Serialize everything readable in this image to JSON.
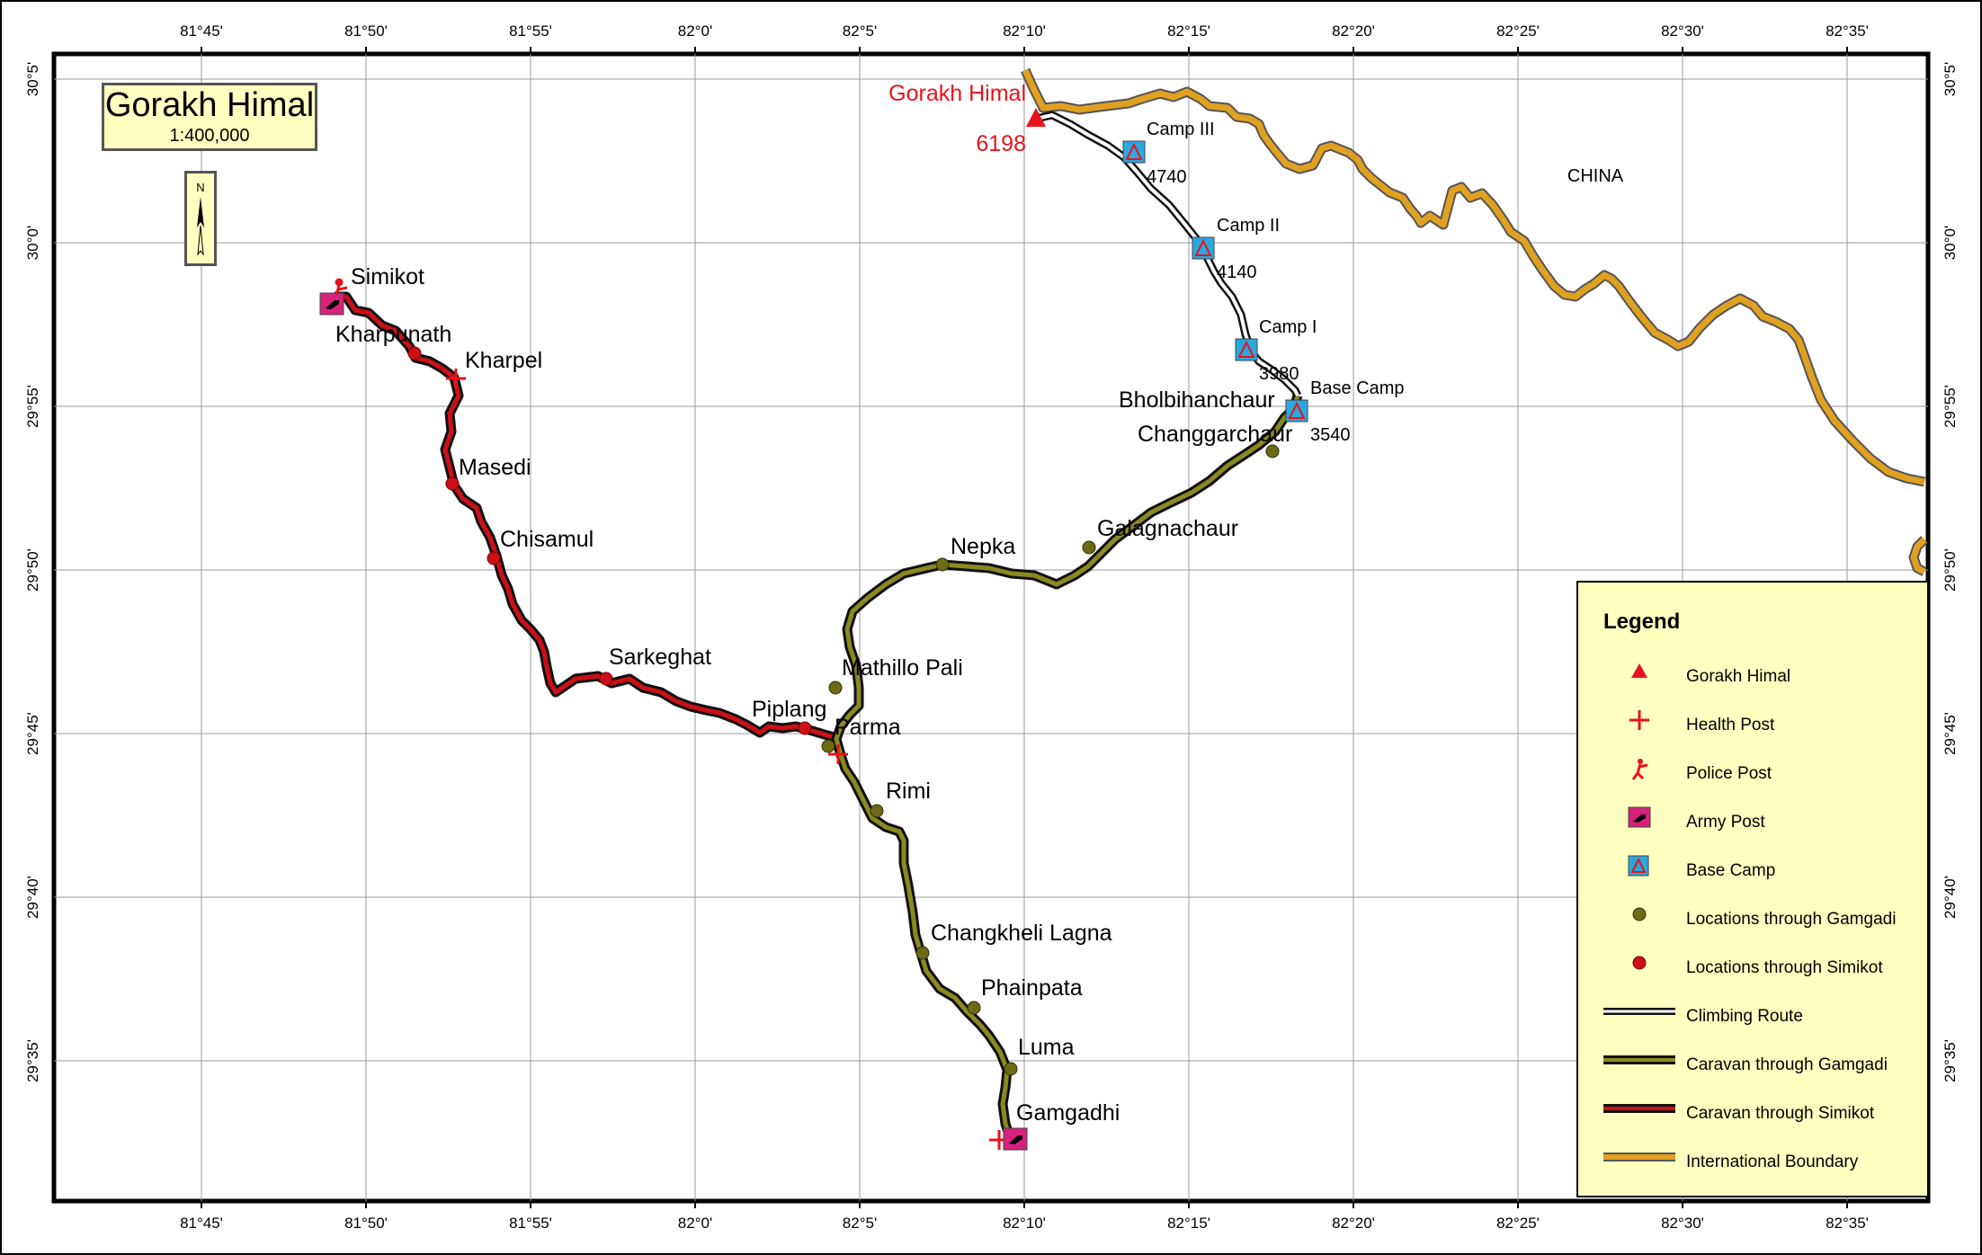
{
  "title": "Gorakh Himal",
  "scale": "1:400,000",
  "north_label": "N",
  "lon_ticks": [
    "81°45'",
    "81°50'",
    "81°55'",
    "82°0'",
    "82°5'",
    "82°10'",
    "82°15'",
    "82°20'",
    "82°25'",
    "82°30'",
    "82°35'"
  ],
  "lat_ticks": [
    "30°5'",
    "30°0'",
    "29°55'",
    "29°50'",
    "29°45'",
    "29°40'",
    "29°35'"
  ],
  "colors": {
    "peak": "#e8141b",
    "health": "#e8141b",
    "army": "#d6217d",
    "camp": "#29a8e0",
    "gamgadi": "#6b6b16",
    "simikot": "#cc1018",
    "boundary": "#e0a020",
    "legend_bg": "#ffffc0"
  },
  "peak": {
    "name": "Gorakh Himal",
    "elevation": "6198"
  },
  "country_label": "CHINA",
  "camps": [
    {
      "name": "Camp III",
      "elevation": "4740"
    },
    {
      "name": "Camp II",
      "elevation": "4140"
    },
    {
      "name": "Camp I",
      "elevation": "3980"
    },
    {
      "name": "Base Camp",
      "elevation": "3540"
    }
  ],
  "simikot_places": [
    "Simikot",
    "Kharpunath",
    "Kharpel",
    "Masedi",
    "Chisamul",
    "Sarkeghat",
    "Piplang"
  ],
  "gamgadi_places": [
    "Bholbihanchaur",
    "Changgarchaur",
    "Galagnachaur",
    "Nepka",
    "Mathillo Pali",
    "Parma",
    "Rimi",
    "Changkheli Lagna",
    "Phainpata",
    "Luma",
    "Gamgadhi"
  ],
  "legend": {
    "title": "Legend",
    "items": [
      {
        "label": "Gorakh Himal",
        "icon": "peak-triangle-icon"
      },
      {
        "label": "Health Post",
        "icon": "health-post-cross-icon"
      },
      {
        "label": "Police Post",
        "icon": "police-post-icon"
      },
      {
        "label": "Army Post",
        "icon": "army-post-icon"
      },
      {
        "label": "Base Camp",
        "icon": "base-camp-tent-icon"
      },
      {
        "label": "Locations through Gamgadi",
        "icon": "gamgadi-dot-icon"
      },
      {
        "label": "Locations through Simikot",
        "icon": "simikot-dot-icon"
      },
      {
        "label": "Climbing Route",
        "icon": "climbing-route-line-icon"
      },
      {
        "label": "Caravan through Gamgadi",
        "icon": "gamgadi-route-line-icon"
      },
      {
        "label": "Caravan through Simikot",
        "icon": "simikot-route-line-icon"
      },
      {
        "label": "International Boundary",
        "icon": "boundary-line-icon"
      }
    ]
  }
}
